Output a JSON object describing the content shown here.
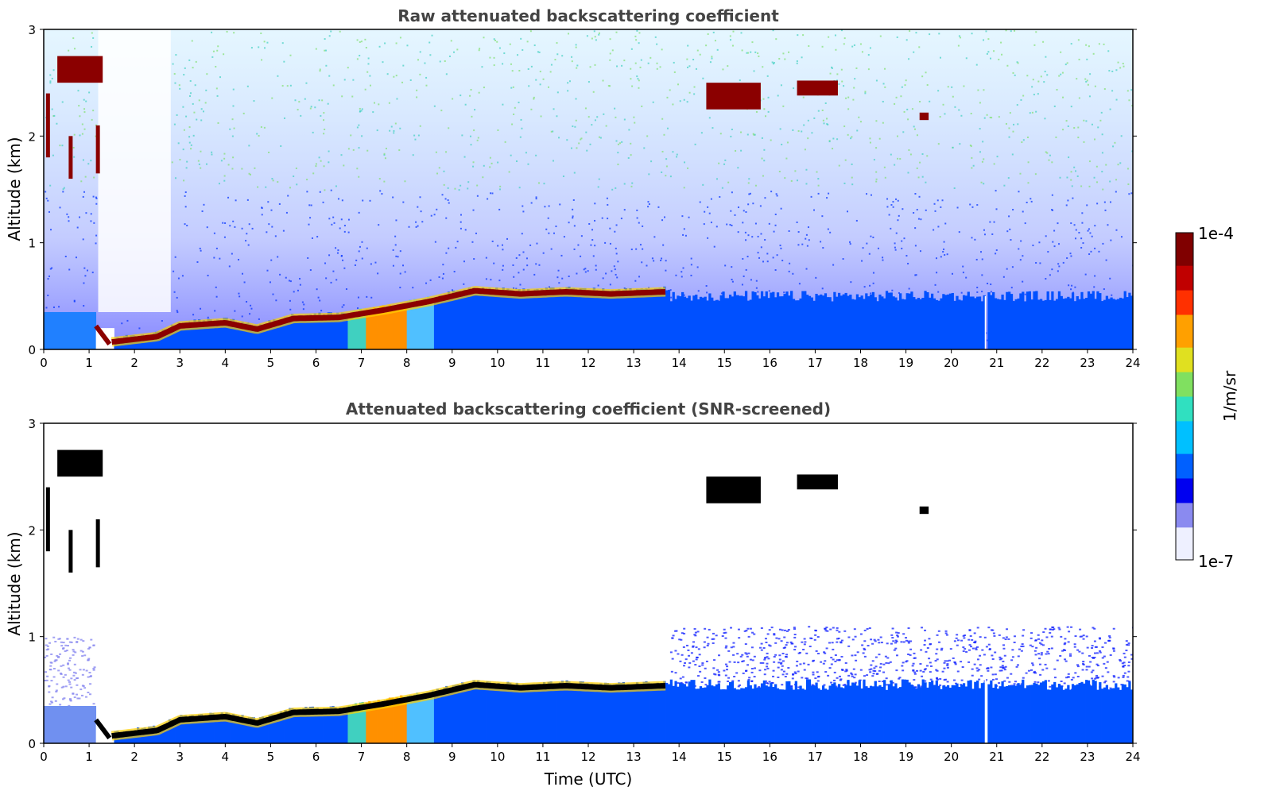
{
  "chart_data": [
    {
      "type": "heatmap",
      "title": "Raw attenuated backscattering coefficient",
      "xlabel": "",
      "ylabel": "Altitude (km)",
      "xlim": [
        0,
        24
      ],
      "ylim": [
        0,
        3
      ],
      "x_ticks": [
        "0",
        "1",
        "2",
        "3",
        "4",
        "5",
        "6",
        "7",
        "8",
        "9",
        "10",
        "11",
        "12",
        "13",
        "14",
        "15",
        "16",
        "17",
        "18",
        "19",
        "20",
        "21",
        "22",
        "23",
        "24"
      ],
      "y_ticks": [
        "0",
        "1",
        "2",
        "3"
      ],
      "features": [
        {
          "label": "boundary layer top",
          "x": [
            1.5,
            2.5,
            3.0,
            4.0,
            4.7,
            5.5,
            6.5,
            7.5,
            8.5,
            9.5,
            10.5,
            11.5,
            12.5,
            13.7
          ],
          "y": [
            0.1,
            0.15,
            0.25,
            0.28,
            0.22,
            0.32,
            0.33,
            0.4,
            0.48,
            0.58,
            0.55,
            0.57,
            0.55,
            0.57
          ]
        },
        {
          "label": "cloud",
          "x_range": [
            0.3,
            1.3
          ],
          "y_range": [
            2.5,
            2.75
          ]
        },
        {
          "label": "cloud",
          "x_range": [
            14.6,
            15.8
          ],
          "y_range": [
            2.25,
            2.5
          ]
        },
        {
          "label": "cloud",
          "x_range": [
            16.6,
            17.5
          ],
          "y_range": [
            2.38,
            2.52
          ]
        },
        {
          "label": "cloud",
          "x_range": [
            19.3,
            19.5
          ],
          "y_range": [
            2.15,
            2.22
          ]
        }
      ]
    },
    {
      "type": "heatmap",
      "title": "Attenuated backscattering coefficient (SNR-screened)",
      "xlabel": "Time (UTC)",
      "ylabel": "Altitude (km)",
      "xlim": [
        0,
        24
      ],
      "ylim": [
        0,
        3
      ],
      "x_ticks": [
        "0",
        "1",
        "2",
        "3",
        "4",
        "5",
        "6",
        "7",
        "8",
        "9",
        "10",
        "11",
        "12",
        "13",
        "14",
        "15",
        "16",
        "17",
        "18",
        "19",
        "20",
        "21",
        "22",
        "23",
        "24"
      ],
      "y_ticks": [
        "0",
        "1",
        "2",
        "3"
      ]
    }
  ],
  "colorbar": {
    "label": "1/m/sr",
    "max_label": "1e-4",
    "min_label": "1e-7",
    "scale": "log",
    "colors": [
      "#eef0ff",
      "#8a8af0",
      "#0000f0",
      "#0060ff",
      "#00c0ff",
      "#30e0c0",
      "#80e060",
      "#e0e020",
      "#ffa000",
      "#ff3000",
      "#c00000",
      "#800000"
    ]
  },
  "cloud_color": "#8b0000",
  "saturated_color": "#000000"
}
